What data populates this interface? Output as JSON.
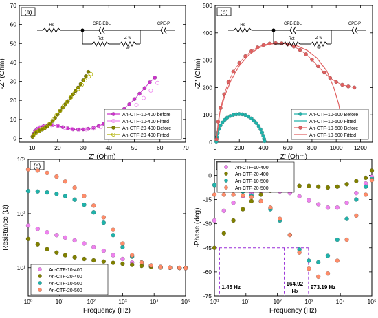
{
  "chart_data": [
    {
      "panel_label": "(a)",
      "type": "scatter",
      "xlabel": "Z' (Ohm)",
      "ylabel": "-Z'' (Ohm)",
      "xlim": [
        5,
        70
      ],
      "ylim": [
        -2,
        70
      ],
      "xticks": [
        10,
        20,
        30,
        40,
        50,
        60,
        70
      ],
      "yticks": [
        0,
        10,
        20,
        30,
        40,
        50,
        60,
        70
      ],
      "circuit": {
        "labels": [
          "Rs",
          "CPE-EDL",
          "Rct",
          "Z-w",
          "CPE-P"
        ],
        "warburg_symbol": "W"
      },
      "legend": {
        "position": "bottom-right"
      },
      "series": [
        {
          "name": "An-CTF-10-400 before",
          "color": "#cc33cc",
          "style": "markers-line",
          "x": [
            10.2,
            10.6,
            11.2,
            12,
            13,
            14.5,
            16,
            18,
            20,
            22,
            24,
            26,
            28,
            30,
            32,
            34,
            36,
            38,
            40,
            42,
            44,
            46,
            48,
            50,
            52,
            54,
            56,
            58
          ],
          "y": [
            1,
            2.5,
            4,
            5,
            5.8,
            6.4,
            6.8,
            7,
            6.6,
            5.9,
            5.2,
            4.7,
            4.6,
            4.7,
            5,
            5.6,
            6.5,
            7.7,
            9.2,
            11,
            13,
            15.5,
            18,
            20.7,
            23.5,
            26.5,
            29.5,
            32
          ]
        },
        {
          "name": "An-CTF-10-400 Fitted",
          "color": "#ee88ee",
          "style": "open-markers",
          "x": [
            10.4,
            11.4,
            12.6,
            14,
            15.6,
            17.6,
            20.2,
            22.8,
            25.6,
            28.4,
            31.2,
            34,
            36.8,
            39.6,
            42.4,
            45.2,
            48,
            50.8,
            53.6,
            56.4,
            59
          ],
          "y": [
            1.6,
            3.6,
            5.2,
            6.1,
            6.7,
            6.9,
            6.5,
            5.6,
            4.9,
            4.6,
            4.7,
            5.1,
            5.9,
            7.2,
            9,
            11.4,
            14.4,
            17.6,
            21.3,
            25.2,
            29.2
          ]
        },
        {
          "name": "An-CTF-20-400 Before",
          "color": "#808000",
          "style": "markers-line",
          "x": [
            10.2,
            10.6,
            11.2,
            12,
            13,
            14,
            15,
            16,
            17,
            18,
            19,
            20,
            21,
            22,
            23,
            24,
            25,
            26,
            27,
            28,
            29,
            30,
            31,
            32
          ],
          "y": [
            0.8,
            1.8,
            2.8,
            3.6,
            4,
            4.6,
            5.4,
            6.4,
            7.6,
            9.2,
            10.8,
            12.6,
            14.4,
            16.2,
            18,
            19.6,
            21.4,
            23.2,
            25,
            26.8,
            28.6,
            30.6,
            32.8,
            35
          ]
        },
        {
          "name": "An-CTF-20-400 Fitted",
          "color": "#b0b000",
          "style": "open-markers",
          "x": [
            10.5,
            11.6,
            12.8,
            14,
            15.4,
            16.8,
            18.2,
            19.6,
            21,
            22.4,
            23.8,
            25.2,
            26.6,
            28,
            29.4,
            30.8,
            32.2,
            33
          ],
          "y": [
            1.4,
            3,
            4.2,
            4.9,
            6,
            7.6,
            9.8,
            12.2,
            14.7,
            17,
            19.3,
            21.6,
            23.8,
            26,
            28.2,
            30.5,
            32.6,
            33.8
          ]
        }
      ]
    },
    {
      "panel_label": "(b)",
      "type": "scatter",
      "xlabel": "Z' (Ohm)",
      "ylabel": "-Z'' (Ohm)",
      "xlim": [
        0,
        1300
      ],
      "ylim": [
        0,
        500
      ],
      "xticks": [
        0,
        200,
        400,
        600,
        800,
        1000,
        1200
      ],
      "yticks": [
        0,
        100,
        200,
        300,
        400,
        500
      ],
      "circuit": {
        "labels": [
          "Rs",
          "CPE-EDL",
          "Rct",
          "Z-w",
          "CPE-P"
        ],
        "warburg_symbol": "W"
      },
      "legend": {
        "position": "bottom-right"
      },
      "series": [
        {
          "name": "An-CTF-10-500 Before",
          "color": "#20b2aa",
          "style": "markers-line",
          "x": [
            10,
            15,
            22,
            32,
            45,
            60,
            80,
            100,
            125,
            150,
            175,
            200,
            225,
            250,
            275,
            300,
            320,
            340,
            360,
            375,
            388,
            398,
            404,
            408
          ],
          "y": [
            2,
            18,
            34,
            48,
            61,
            72,
            82,
            90,
            96,
            100,
            102,
            103,
            102,
            99,
            94,
            87,
            79,
            70,
            58,
            47,
            35,
            23,
            12,
            4
          ]
        },
        {
          "name": "An-CTF-10-500 Fitted",
          "color": "#20b2aa",
          "style": "line",
          "x": [
            10,
            40,
            80,
            120,
            160,
            200,
            240,
            280,
            320,
            360,
            390,
            405
          ],
          "y": [
            4,
            58,
            82,
            95,
            101,
            102,
            99,
            91,
            77,
            57,
            35,
            10
          ]
        },
        {
          "name": "An-CTF-10-500 Before",
          "color": "#e06060",
          "style": "markers-line",
          "x": [
            12,
            25,
            45,
            75,
            110,
            150,
            200,
            250,
            300,
            350,
            400,
            450,
            500,
            550,
            600,
            650,
            700,
            750,
            800,
            850,
            900,
            950,
            1000,
            1050,
            1100,
            1150
          ],
          "y": [
            10,
            75,
            125,
            175,
            220,
            258,
            290,
            315,
            333,
            347,
            356,
            361,
            363,
            362,
            358,
            350,
            338,
            322,
            302,
            278,
            255,
            235,
            220,
            210,
            204,
            200
          ]
        },
        {
          "name": "An-CTF-10-500 Fitted",
          "color": "#e06060",
          "style": "line",
          "x": [
            12,
            40,
            80,
            130,
            200,
            280,
            360,
            440,
            520,
            600,
            680,
            760,
            840,
            920,
            980,
            1020,
            1045,
            1055
          ],
          "y": [
            15,
            110,
            170,
            225,
            280,
            320,
            345,
            358,
            362,
            360,
            352,
            336,
            308,
            262,
            200,
            140,
            80,
            20
          ]
        }
      ]
    },
    {
      "panel_label": "(c)",
      "type": "scatter",
      "xlabel": "Frequency (Hz)",
      "ylabel": "Resistance (Ω)",
      "xscale": "log",
      "yscale": "log",
      "xlim": [
        1,
        100000
      ],
      "ylim": [
        3,
        1000
      ],
      "xticks": [
        1,
        10,
        100,
        1000,
        10000,
        100000
      ],
      "yticks": [
        10,
        100,
        1000
      ],
      "legend": {
        "position": "bottom-left"
      },
      "series": [
        {
          "name": "An-CTF-10-400",
          "color": "#ee82ee",
          "x": [
            1,
            2,
            4,
            8,
            15,
            30,
            60,
            120,
            250,
            500,
            1000,
            2000,
            4000,
            8000,
            16000,
            32000,
            64000,
            100000
          ],
          "y": [
            60,
            52,
            45,
            40,
            36,
            32,
            28,
            24,
            20.5,
            17,
            14.5,
            12.5,
            11,
            10.5,
            10.2,
            10,
            9.9,
            9.8
          ]
        },
        {
          "name": "An-CTF-20-400",
          "color": "#808000",
          "x": [
            1,
            2,
            4,
            8,
            15,
            30,
            60,
            120,
            250,
            500,
            1000,
            2000,
            4000,
            8000,
            16000,
            32000,
            64000,
            100000
          ],
          "y": [
            34,
            27,
            22,
            19,
            17,
            15.5,
            14.5,
            13.7,
            13,
            12.3,
            11.8,
            11.3,
            10.8,
            10.4,
            10.1,
            10,
            9.9,
            9.9
          ]
        },
        {
          "name": "An-CTF-10-500",
          "color": "#20b2aa",
          "x": [
            1,
            2,
            4,
            8,
            15,
            30,
            60,
            120,
            250,
            500,
            1000,
            2000,
            4000,
            8000,
            16000,
            32000,
            64000,
            100000
          ],
          "y": [
            260,
            255,
            245,
            230,
            210,
            180,
            145,
            105,
            68,
            40,
            24,
            16,
            12.5,
            11,
            10.3,
            10,
            9.9,
            9.8
          ]
        },
        {
          "name": "An-CTF-20-500",
          "color": "#ff8c69",
          "x": [
            1,
            2,
            4,
            8,
            15,
            30,
            60,
            120,
            250,
            500,
            1000,
            2000,
            4000,
            8000,
            16000,
            32000,
            64000,
            100000
          ],
          "y": [
            650,
            620,
            560,
            480,
            390,
            300,
            210,
            140,
            85,
            50,
            28,
            17,
            12.5,
            11,
            10.3,
            10,
            9.9,
            9.8
          ]
        }
      ]
    },
    {
      "panel_label": "(d)",
      "type": "scatter",
      "xlabel": "Frequency (Hz)",
      "ylabel": "-Phase (deg)",
      "xscale": "log",
      "xlim": [
        1,
        100000
      ],
      "ylim": [
        -75,
        10
      ],
      "xticks": [
        1,
        10,
        100,
        1000,
        10000,
        100000
      ],
      "yticks": [
        -75,
        -60,
        -45,
        -30,
        -15,
        0
      ],
      "legend": {
        "position": "top-left"
      },
      "annotations": [
        {
          "text": "1.45 Hz",
          "x": 1.45,
          "y": -45
        },
        {
          "text": "164.92",
          "text2": "Hz",
          "x": 164.92,
          "y": -45
        },
        {
          "text": "973.19 Hz",
          "x": 973.19,
          "y": -45
        }
      ],
      "series": [
        {
          "name": "An-CTF-10-400",
          "color": "#ee82ee",
          "x": [
            1,
            2,
            4,
            8,
            15,
            30,
            60,
            120,
            250,
            500,
            1000,
            2000,
            4000,
            8000,
            16000,
            32000,
            64000,
            100000
          ],
          "y": [
            -28,
            -22,
            -17,
            -13,
            -11,
            -10,
            -9.5,
            -10,
            -11,
            -13,
            -15.5,
            -18,
            -20,
            -20,
            -17,
            -11,
            -5,
            -1
          ]
        },
        {
          "name": "An-CTF-20-400",
          "color": "#808000",
          "x": [
            1,
            2,
            4,
            8,
            15,
            30,
            60,
            120,
            250,
            500,
            1000,
            2000,
            4000,
            8000,
            16000,
            32000,
            64000,
            100000
          ],
          "y": [
            -45,
            -36,
            -28,
            -21,
            -16,
            -12,
            -9.5,
            -8,
            -7,
            -6.5,
            -6.5,
            -7,
            -7.5,
            -7,
            -5.5,
            -3.5,
            -1.5,
            3
          ]
        },
        {
          "name": "An-CTF-10-500",
          "color": "#20b2aa",
          "x": [
            1,
            2,
            4,
            8,
            15,
            30,
            60,
            120,
            250,
            500,
            1000,
            2000,
            4000,
            8000,
            16000,
            32000,
            64000,
            100000
          ],
          "y": [
            -6,
            -7,
            -8,
            -10,
            -12.5,
            -16,
            -21,
            -28,
            -37,
            -46,
            -53,
            -54,
            -50,
            -40,
            -27,
            -15,
            -7,
            -2
          ]
        },
        {
          "name": "An-CTF-20-500",
          "color": "#ff8c69",
          "x": [
            1,
            2,
            4,
            8,
            15,
            30,
            60,
            120,
            250,
            500,
            1000,
            2000,
            4000,
            8000,
            16000,
            32000,
            64000,
            100000
          ],
          "y": [
            -12,
            -12,
            -12,
            -12.5,
            -13.5,
            -16,
            -20,
            -27,
            -37,
            -48,
            -58,
            -63,
            -61,
            -53,
            -40,
            -25,
            -12,
            -3
          ]
        }
      ]
    }
  ]
}
